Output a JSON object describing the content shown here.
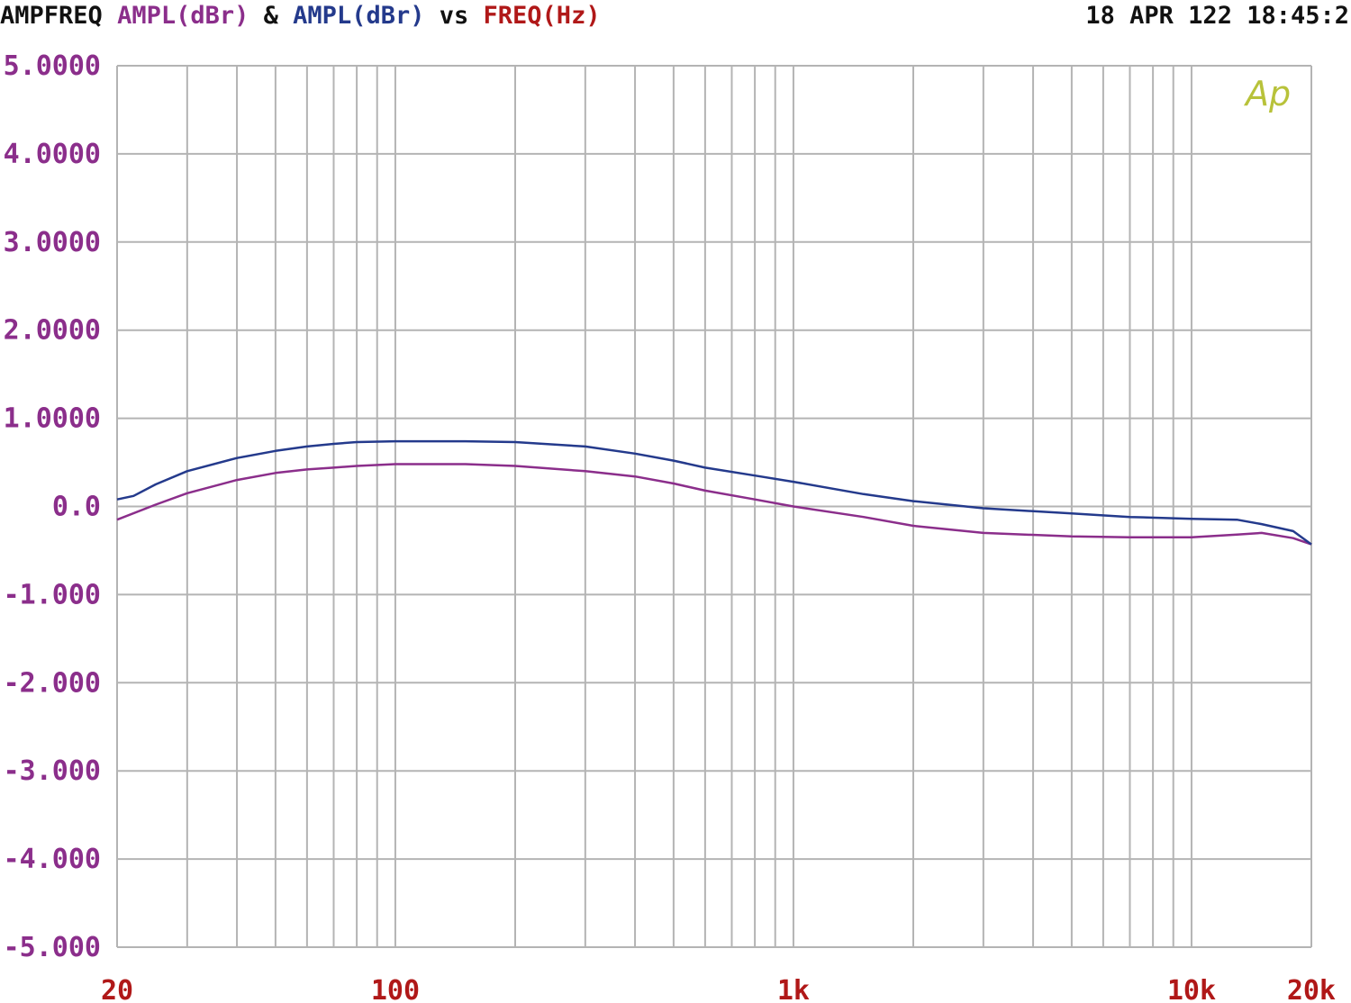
{
  "header": {
    "prefix": "AMPFREQ",
    "series1": "AMPL(dBr)",
    "amp": "&",
    "series2": "AMPL(dBr)",
    "vs": "vs",
    "xquantity": "FREQ(Hz)",
    "timestamp": "18 APR 122 18:45:2"
  },
  "logo_text": "Ap",
  "colors": {
    "prefix": "#111111",
    "series1": "#8b2e8b",
    "series2": "#243a8c",
    "xquantity": "#b01818",
    "ytick": "#8b2e8b",
    "xtick": "#b01818",
    "grid": "#b4b4b4",
    "logo": "#b8c23a"
  },
  "chart_data": {
    "type": "line",
    "xscale": "log",
    "xlim": [
      20,
      20000
    ],
    "ylim": [
      -5,
      5
    ],
    "grid": true,
    "ytick_values": [
      5,
      4,
      3,
      2,
      1,
      0,
      -1,
      -2,
      -3,
      -4,
      -5
    ],
    "ytick_labels": [
      "5.0000",
      "4.0000",
      "3.0000",
      "2.0000",
      "1.0000",
      "0.0",
      "-1.000",
      "-2.000",
      "-3.000",
      "-4.000",
      "-5.000"
    ],
    "xtick_values": [
      20,
      100,
      1000,
      10000,
      20000
    ],
    "xtick_labels": [
      "20",
      "100",
      "1k",
      "10k",
      "20k"
    ],
    "series": [
      {
        "color": "#8b2e8b",
        "x": [
          20,
          25,
          30,
          40,
          50,
          60,
          70,
          80,
          100,
          150,
          200,
          300,
          400,
          500,
          600,
          800,
          1000,
          1500,
          2000,
          3000,
          5000,
          7000,
          10000,
          13000,
          15000,
          18000,
          20000
        ],
        "y": [
          -0.15,
          0.02,
          0.15,
          0.3,
          0.38,
          0.42,
          0.44,
          0.46,
          0.48,
          0.48,
          0.46,
          0.4,
          0.34,
          0.26,
          0.18,
          0.08,
          0.0,
          -0.12,
          -0.22,
          -0.3,
          -0.34,
          -0.35,
          -0.35,
          -0.32,
          -0.3,
          -0.36,
          -0.43
        ]
      },
      {
        "color": "#243a8c",
        "x": [
          20,
          22,
          25,
          30,
          40,
          50,
          60,
          70,
          80,
          100,
          150,
          200,
          300,
          400,
          500,
          600,
          800,
          1000,
          1500,
          2000,
          3000,
          5000,
          7000,
          10000,
          13000,
          15000,
          18000,
          20000
        ],
        "y": [
          0.08,
          0.12,
          0.25,
          0.4,
          0.55,
          0.63,
          0.68,
          0.71,
          0.73,
          0.74,
          0.74,
          0.73,
          0.68,
          0.6,
          0.52,
          0.44,
          0.35,
          0.28,
          0.14,
          0.06,
          -0.02,
          -0.08,
          -0.12,
          -0.14,
          -0.15,
          -0.2,
          -0.28,
          -0.43
        ]
      }
    ]
  }
}
